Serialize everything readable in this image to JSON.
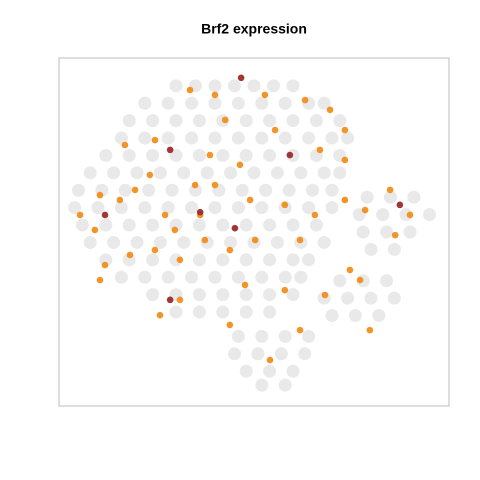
{
  "chart_data": {
    "type": "scatter",
    "title": "Brf2 expression",
    "xlim": [
      0,
      100
    ],
    "ylim": [
      0,
      100
    ],
    "series": [
      {
        "color": "#d3d3d3",
        "x": [
          30,
          35,
          40,
          45,
          50,
          55,
          60,
          22,
          28,
          34,
          40,
          46,
          52,
          58,
          64,
          68,
          18,
          24,
          30,
          36,
          42,
          48,
          54,
          60,
          66,
          72,
          16,
          22,
          28,
          34,
          40,
          46,
          52,
          58,
          64,
          70,
          74,
          12,
          18,
          24,
          30,
          36,
          42,
          48,
          54,
          60,
          66,
          72,
          8,
          14,
          20,
          26,
          32,
          38,
          44,
          50,
          56,
          62,
          68,
          72,
          5,
          11,
          17,
          23,
          29,
          35,
          41,
          47,
          53,
          59,
          65,
          70,
          4,
          10,
          16,
          22,
          28,
          34,
          40,
          46,
          52,
          58,
          64,
          70,
          6,
          12,
          18,
          24,
          30,
          36,
          42,
          48,
          54,
          60,
          66,
          8,
          14,
          20,
          26,
          32,
          38,
          44,
          50,
          56,
          62,
          68,
          12,
          18,
          24,
          30,
          36,
          42,
          48,
          54,
          60,
          64,
          16,
          22,
          28,
          34,
          40,
          46,
          52,
          58,
          62,
          24,
          30,
          36,
          42,
          48,
          54,
          60,
          30,
          36,
          42,
          48,
          54,
          46,
          52,
          58,
          64,
          45,
          51,
          57,
          63,
          48,
          54,
          60,
          52,
          58,
          79,
          85,
          91,
          77,
          83,
          89,
          95,
          78,
          84,
          90,
          80,
          86,
          72,
          78,
          84,
          68,
          74,
          80,
          86,
          70,
          76,
          82
        ],
        "values": [
          92,
          92,
          92,
          92,
          92,
          92,
          92,
          87,
          87,
          87,
          87,
          87,
          87,
          87,
          87,
          87,
          82,
          82,
          82,
          82,
          82,
          82,
          82,
          82,
          82,
          82,
          77,
          77,
          77,
          77,
          77,
          77,
          77,
          77,
          77,
          77,
          77,
          72,
          72,
          72,
          72,
          72,
          72,
          72,
          72,
          72,
          72,
          72,
          67,
          67,
          67,
          67,
          67,
          67,
          67,
          67,
          67,
          67,
          67,
          67,
          62,
          62,
          62,
          62,
          62,
          62,
          62,
          62,
          62,
          62,
          62,
          62,
          57,
          57,
          57,
          57,
          57,
          57,
          57,
          57,
          57,
          57,
          57,
          57,
          52,
          52,
          52,
          52,
          52,
          52,
          52,
          52,
          52,
          52,
          52,
          47,
          47,
          47,
          47,
          47,
          47,
          47,
          47,
          47,
          47,
          47,
          42,
          42,
          42,
          42,
          42,
          42,
          42,
          42,
          42,
          42,
          37,
          37,
          37,
          37,
          37,
          37,
          37,
          37,
          37,
          32,
          32,
          32,
          32,
          32,
          32,
          32,
          27,
          27,
          27,
          27,
          27,
          20,
          20,
          20,
          20,
          15,
          15,
          15,
          15,
          10,
          10,
          10,
          6,
          6,
          60,
          60,
          60,
          55,
          55,
          55,
          55,
          50,
          50,
          50,
          45,
          45,
          36,
          36,
          36,
          31,
          31,
          31,
          31,
          26,
          26,
          26
        ]
      },
      {
        "color": "#f28e1c",
        "x": [
          33.6,
          40.0,
          52.8,
          63.1,
          69.5,
          73.3,
          55.4,
          38.7,
          24.6,
          16.9,
          10.5,
          5.4,
          9.2,
          15.6,
          19.5,
          27.2,
          34.9,
          40.0,
          49.0,
          57.9,
          65.6,
          61.8,
          50.3,
          43.8,
          37.4,
          31.0,
          24.6,
          18.2,
          11.8,
          10.5,
          73.3,
          73.3,
          66.9,
          46.4,
          23.3,
          31.0,
          25.9,
          43.8,
          54.1,
          61.8,
          68.2,
          74.6,
          77.2,
          79.7,
          84.9,
          86.2,
          90.0,
          78.5,
          36.2,
          29.7,
          47.7,
          57.9,
          42.6
        ],
        "values": [
          90.8,
          89.4,
          89.4,
          87.9,
          85.1,
          79.3,
          79.3,
          72.1,
          76.4,
          75.0,
          60.6,
          54.9,
          50.6,
          59.2,
          62.1,
          54.9,
          63.5,
          63.5,
          59.2,
          57.8,
          54.9,
          47.7,
          47.7,
          44.8,
          47.7,
          42.0,
          44.8,
          43.4,
          40.5,
          36.2,
          59.2,
          70.7,
          73.6,
          69.3,
          66.4,
          30.5,
          26.1,
          23.3,
          13.2,
          21.8,
          31.9,
          39.1,
          36.2,
          21.8,
          62.1,
          49.1,
          54.9,
          56.3,
          54.9,
          50.6,
          34.8,
          33.3,
          82.2
        ]
      },
      {
        "color": "#9e2a2b",
        "x": [
          46.7,
          59.2,
          11.8,
          45.1,
          28.5,
          36.2,
          28.5,
          87.4
        ],
        "values": [
          94.3,
          72.1,
          54.9,
          51.1,
          30.5,
          55.7,
          73.6,
          57.8
        ]
      }
    ]
  }
}
